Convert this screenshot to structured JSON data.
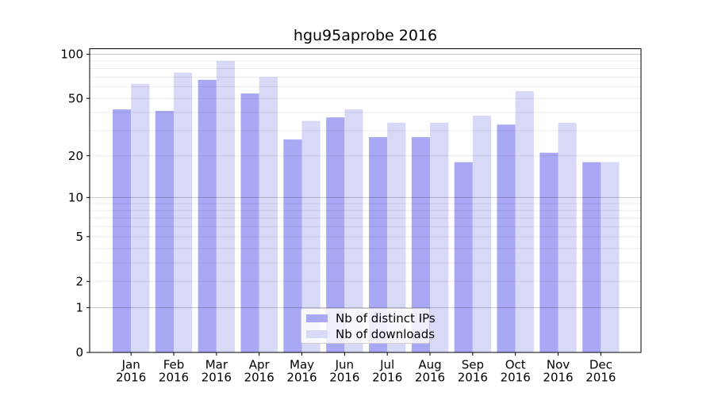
{
  "figure": {
    "background": "#ffffff"
  },
  "chart_data": {
    "type": "bar",
    "title": "hgu95aprobe 2016",
    "categories": [
      "Jan",
      "Feb",
      "Mar",
      "Apr",
      "May",
      "Jun",
      "Jul",
      "Aug",
      "Sep",
      "Oct",
      "Nov",
      "Dec"
    ],
    "year_label": "2016",
    "series": [
      {
        "name": "Nb of distinct IPs",
        "color": "#a8a8f5",
        "values": [
          42,
          41,
          67,
          54,
          26,
          37,
          27,
          27,
          18,
          33,
          21,
          18
        ]
      },
      {
        "name": "Nb of downloads",
        "color": "#d8d8f7",
        "values": [
          63,
          75,
          90,
          70,
          35,
          42,
          34,
          34,
          38,
          56,
          34,
          18
        ]
      }
    ],
    "yscale": "log1p",
    "ylim": [
      0,
      109
    ],
    "yticks_labeled": [
      0,
      1,
      2,
      5,
      10,
      20,
      50,
      100
    ],
    "grid_major": [
      1,
      10,
      100
    ],
    "grid_minor": [
      2,
      3,
      4,
      5,
      6,
      7,
      8,
      9,
      20,
      30,
      40,
      50,
      60,
      70,
      80,
      90
    ],
    "grid": true,
    "legend_position": "lower center",
    "colors": {
      "spine": "#000000",
      "grid_major": "#c9c9c9",
      "grid_minor": "#ebebeb",
      "text": "#000000",
      "legend_border": "#cccccc"
    }
  }
}
